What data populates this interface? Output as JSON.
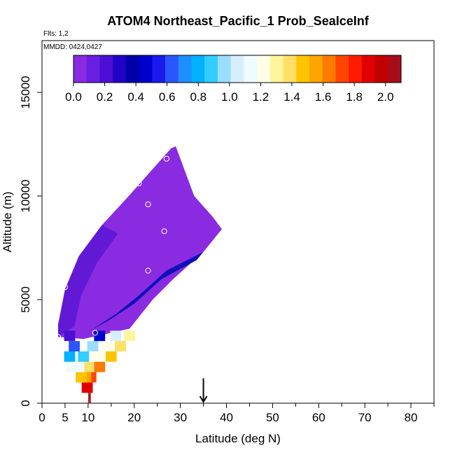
{
  "chart_data": {
    "type": "heatmap",
    "title": "ATOM4 Northeast_Pacific_1 Prob_SeaIceInf",
    "subtitle_flights": "Flts: 1,2",
    "subtitle_dates": "MMDD: 0424,0427",
    "xlabel": "Latitude (deg N)",
    "ylabel": "Altitude (m)",
    "xlim": [
      0,
      85
    ],
    "ylim": [
      0,
      17500
    ],
    "x_ticks": [
      0,
      5,
      10,
      20,
      30,
      40,
      50,
      60,
      70,
      80
    ],
    "y_ticks": [
      0,
      5000,
      10000,
      15000
    ],
    "colorbar": {
      "ticks": [
        "0.0",
        "0.2",
        "0.4",
        "0.6",
        "0.8",
        "1.0",
        "1.2",
        "1.4",
        "1.6",
        "1.8",
        "2.0"
      ],
      "range": [
        0,
        2.1
      ],
      "colors": [
        "#8a2be2",
        "#6a1ee0",
        "#4b0fd4",
        "#2200c8",
        "#0000a8",
        "#0000cc",
        "#1a1aee",
        "#2a55ff",
        "#1f8fff",
        "#00b2ff",
        "#33ccff",
        "#99ddff",
        "#d6efff",
        "#f0fbff",
        "#ffffe8",
        "#fff59a",
        "#ffe066",
        "#ffc400",
        "#ffa500",
        "#ff7a00",
        "#ff4500",
        "#ff1a00",
        "#e00000",
        "#c00000",
        "#a60d1a"
      ]
    },
    "series": [
      {
        "lat": 9.8,
        "alt_min": 500,
        "alt_max": 1000,
        "value": 1.85
      },
      {
        "lat": 10.6,
        "alt_min": 1000,
        "alt_max": 1500,
        "value": 1.75
      },
      {
        "lat": 9.5,
        "alt_min": 1000,
        "alt_max": 1500,
        "value": 1.55
      },
      {
        "lat": 8.5,
        "alt_min": 1000,
        "alt_max": 1500,
        "value": 1.5
      },
      {
        "lat": 12.5,
        "alt_min": 1500,
        "alt_max": 2000,
        "value": 1.6
      },
      {
        "lat": 10.0,
        "alt_min": 1500,
        "alt_max": 2000,
        "value": 1.35
      },
      {
        "lat": 8.0,
        "alt_min": 1500,
        "alt_max": 2000,
        "value": 1.15
      },
      {
        "lat": 6.5,
        "alt_min": 1500,
        "alt_max": 2000,
        "value": 1.1
      },
      {
        "lat": 15.0,
        "alt_min": 2000,
        "alt_max": 2500,
        "value": 1.45
      },
      {
        "lat": 12.0,
        "alt_min": 2000,
        "alt_max": 2500,
        "value": 1.2
      },
      {
        "lat": 9.0,
        "alt_min": 2000,
        "alt_max": 2500,
        "value": 0.85
      },
      {
        "lat": 6.0,
        "alt_min": 2000,
        "alt_max": 2500,
        "value": 0.8
      },
      {
        "lat": 17.0,
        "alt_min": 2500,
        "alt_max": 3000,
        "value": 1.4
      },
      {
        "lat": 14.0,
        "alt_min": 2500,
        "alt_max": 3000,
        "value": 1.2
      },
      {
        "lat": 11.0,
        "alt_min": 2500,
        "alt_max": 3000,
        "value": 0.95
      },
      {
        "lat": 7.0,
        "alt_min": 2500,
        "alt_max": 3000,
        "value": 0.65
      },
      {
        "lat": 19.0,
        "alt_min": 3000,
        "alt_max": 3500,
        "value": 1.3
      },
      {
        "lat": 16.0,
        "alt_min": 3000,
        "alt_max": 3500,
        "value": 1.05
      },
      {
        "lat": 12.5,
        "alt_min": 3000,
        "alt_max": 3500,
        "value": 0.5
      },
      {
        "lat": 6.0,
        "alt_min": 3000,
        "alt_max": 3500,
        "value": 0.2
      }
    ],
    "points": [
      {
        "lat": 3.5,
        "alt": 3200
      },
      {
        "lat": 11.5,
        "alt": 3400
      },
      {
        "lat": 5.0,
        "alt": 5600
      },
      {
        "lat": 23.0,
        "alt": 6400
      },
      {
        "lat": 26.5,
        "alt": 8300
      },
      {
        "lat": 23.0,
        "alt": 9600
      },
      {
        "lat": 21.0,
        "alt": 10600
      },
      {
        "lat": 27.0,
        "alt": 11800
      }
    ],
    "marker": {
      "lat": 35.0,
      "label": "↓"
    }
  }
}
